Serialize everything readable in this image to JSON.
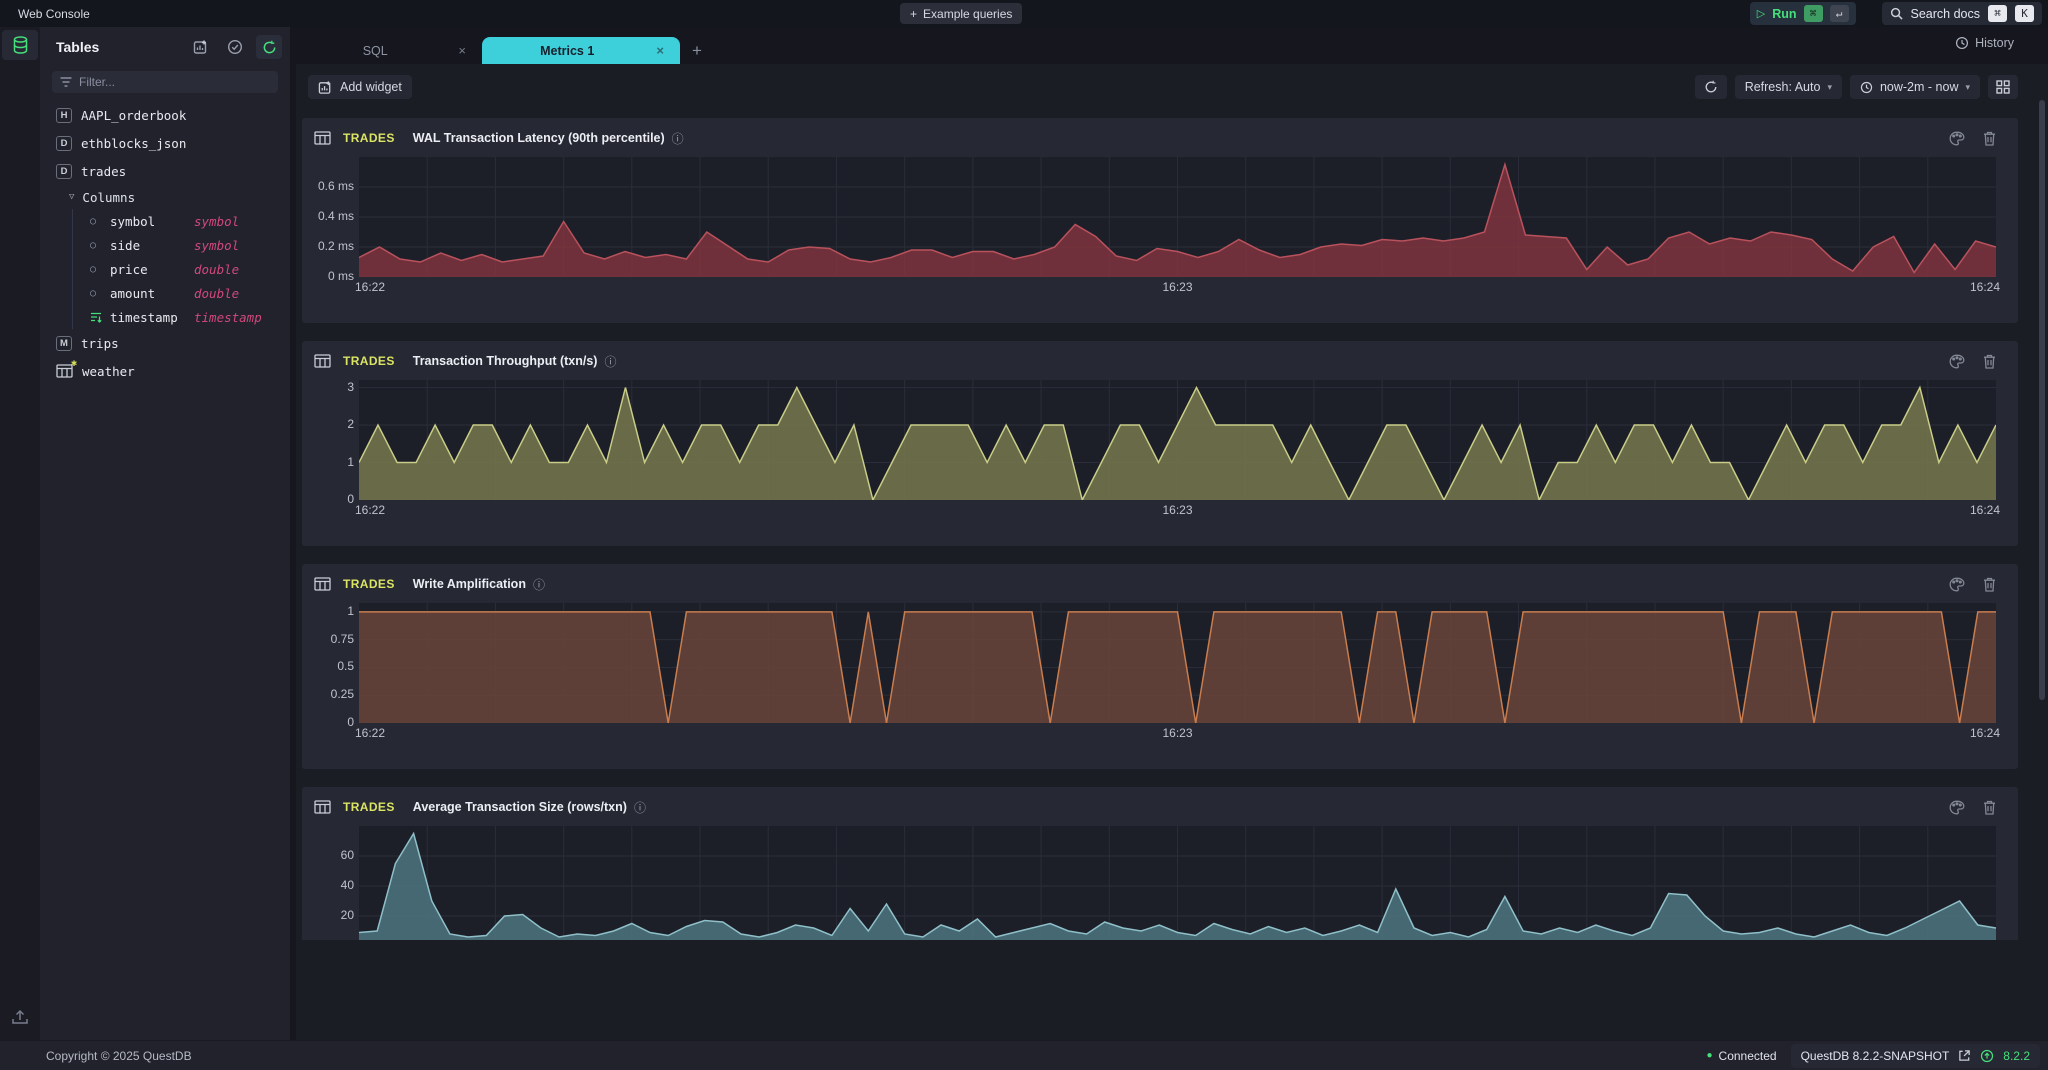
{
  "topbar": {
    "app_title": "Web Console",
    "example_queries_label": "Example queries",
    "run_label": "Run",
    "run_kbd": [
      "⌘",
      "↵"
    ],
    "search_label": "Search docs",
    "search_kbd": [
      "⌘",
      "K"
    ]
  },
  "icons": {
    "plus": "+",
    "run": "▷",
    "info": "ⓘ",
    "chevron_down": "▾",
    "close": "×",
    "circle": "○",
    "triangle_down": "▽",
    "asterisk": "✱",
    "dot": "●"
  },
  "sidebar": {
    "title": "Tables",
    "filter_placeholder": "Filter...",
    "columns_label": "Columns",
    "tables": [
      {
        "badge": "H",
        "name": "AAPL_orderbook"
      },
      {
        "badge": "D",
        "name": "ethblocks_json"
      },
      {
        "badge": "D",
        "name": "trades",
        "expanded": true,
        "columns": [
          {
            "name": "symbol",
            "type": "symbol"
          },
          {
            "name": "side",
            "type": "symbol"
          },
          {
            "name": "price",
            "type": "double"
          },
          {
            "name": "amount",
            "type": "double"
          },
          {
            "name": "timestamp",
            "type": "timestamp",
            "designated": true
          }
        ]
      },
      {
        "badge": "M",
        "name": "trips"
      },
      {
        "badge": "matview",
        "name": "weather"
      }
    ]
  },
  "tabs": {
    "items": [
      {
        "label": "SQL",
        "active": false
      },
      {
        "label": "Metrics 1",
        "active": true
      }
    ],
    "history_label": "History"
  },
  "toolbar": {
    "add_widget_label": "Add widget",
    "refresh_mode": "Refresh: Auto",
    "time_range": "now-2m - now"
  },
  "statusbar": {
    "copyright": "Copyright © 2025 QuestDB",
    "connection": "Connected",
    "version": "QuestDB 8.2.2-SNAPSHOT",
    "update_version": "8.2.2"
  },
  "colors": {
    "accent_cyan": "#3ed0da",
    "accent_green": "#45e07b",
    "table_yellow": "#dbe463",
    "type_pink": "#d0487c"
  },
  "chart_data": [
    {
      "type": "area",
      "table": "TRADES",
      "title": "WAL Transaction Latency (90th percentile)",
      "line_color": "#b9525c",
      "fill_color": "rgba(134,52,64,0.8)",
      "ylim": [
        0,
        0.8
      ],
      "yticks": [
        {
          "v": 0,
          "label": "0 ms"
        },
        {
          "v": 0.2,
          "label": "0.2 ms"
        },
        {
          "v": 0.4,
          "label": "0.4 ms"
        },
        {
          "v": 0.6,
          "label": "0.6 ms"
        }
      ],
      "x_ticks": [
        "16:22",
        "16:23",
        "16:24"
      ],
      "grid": true,
      "values": [
        0.13,
        0.2,
        0.12,
        0.1,
        0.16,
        0.11,
        0.15,
        0.1,
        0.12,
        0.14,
        0.37,
        0.16,
        0.12,
        0.17,
        0.13,
        0.15,
        0.12,
        0.3,
        0.21,
        0.12,
        0.1,
        0.18,
        0.2,
        0.19,
        0.12,
        0.1,
        0.13,
        0.18,
        0.18,
        0.13,
        0.17,
        0.17,
        0.12,
        0.15,
        0.2,
        0.35,
        0.27,
        0.14,
        0.11,
        0.19,
        0.17,
        0.13,
        0.17,
        0.25,
        0.18,
        0.13,
        0.15,
        0.2,
        0.22,
        0.21,
        0.25,
        0.24,
        0.26,
        0.24,
        0.26,
        0.3,
        0.75,
        0.28,
        0.27,
        0.26,
        0.05,
        0.2,
        0.08,
        0.12,
        0.26,
        0.3,
        0.22,
        0.26,
        0.24,
        0.3,
        0.28,
        0.25,
        0.12,
        0.04,
        0.2,
        0.27,
        0.03,
        0.22,
        0.05,
        0.24,
        0.2
      ]
    },
    {
      "type": "area",
      "table": "TRADES",
      "title": "Transaction Throughput (txn/s)",
      "line_color": "#c9cd87",
      "fill_color": "rgba(118,120,78,0.85)",
      "ylim": [
        0,
        3.2
      ],
      "yticks": [
        {
          "v": 0,
          "label": "0"
        },
        {
          "v": 1,
          "label": "1"
        },
        {
          "v": 2,
          "label": "2"
        },
        {
          "v": 3,
          "label": "3"
        }
      ],
      "x_ticks": [
        "16:22",
        "16:23",
        "16:24"
      ],
      "grid": true,
      "values": [
        1,
        2,
        1,
        1,
        2,
        1,
        2,
        2,
        1,
        2,
        1,
        1,
        2,
        1,
        3,
        1,
        2,
        1,
        2,
        2,
        1,
        2,
        2,
        3,
        2,
        1,
        2,
        0,
        1,
        2,
        2,
        2,
        2,
        1,
        2,
        1,
        2,
        2,
        0,
        1,
        2,
        2,
        1,
        2,
        3,
        2,
        2,
        2,
        2,
        1,
        2,
        1,
        0,
        1,
        2,
        2,
        1,
        0,
        1,
        2,
        1,
        2,
        0,
        1,
        1,
        2,
        1,
        2,
        2,
        1,
        2,
        1,
        1,
        0,
        1,
        2,
        1,
        2,
        2,
        1,
        2,
        2,
        3,
        1,
        2,
        1,
        2
      ]
    },
    {
      "type": "area",
      "table": "TRADES",
      "title": "Write Amplification",
      "line_color": "#c97d4e",
      "fill_color": "rgba(102,67,56,0.9)",
      "ylim": [
        0,
        1.08
      ],
      "yticks": [
        {
          "v": 0,
          "label": "0"
        },
        {
          "v": 0.25,
          "label": "0.25"
        },
        {
          "v": 0.5,
          "label": "0.5"
        },
        {
          "v": 0.75,
          "label": "0.75"
        },
        {
          "v": 1,
          "label": "1"
        }
      ],
      "x_ticks": [
        "16:22",
        "16:23",
        "16:24"
      ],
      "grid": true,
      "values": [
        1,
        1,
        1,
        1,
        1,
        1,
        1,
        1,
        1,
        1,
        1,
        1,
        1,
        1,
        1,
        1,
        1,
        0,
        1,
        1,
        1,
        1,
        1,
        1,
        1,
        1,
        1,
        0,
        1,
        0,
        1,
        1,
        1,
        1,
        1,
        1,
        1,
        1,
        0,
        1,
        1,
        1,
        1,
        1,
        1,
        1,
        0,
        1,
        1,
        1,
        1,
        1,
        1,
        1,
        1,
        0,
        1,
        1,
        0,
        1,
        1,
        1,
        1,
        0,
        1,
        1,
        1,
        1,
        1,
        1,
        1,
        1,
        1,
        1,
        1,
        1,
        0,
        1,
        1,
        1,
        0,
        1,
        1,
        1,
        1,
        1,
        1,
        1,
        0,
        1,
        1
      ]
    },
    {
      "type": "area",
      "table": "TRADES",
      "title": "Average Transaction Size (rows/txn)",
      "line_color": "#8fc0c9",
      "fill_color": "rgba(77,118,128,0.85)",
      "ylim": [
        0,
        80
      ],
      "yticks": [
        {
          "v": 20,
          "label": "20"
        },
        {
          "v": 40,
          "label": "40"
        },
        {
          "v": 60,
          "label": "60"
        }
      ],
      "x_ticks": [
        "16:22",
        "16:23",
        "16:24"
      ],
      "grid": true,
      "values": [
        9,
        10,
        55,
        75,
        30,
        8,
        6,
        7,
        20,
        21,
        12,
        6,
        8,
        7,
        10,
        15,
        9,
        7,
        13,
        17,
        16,
        8,
        6,
        9,
        14,
        12,
        7,
        25,
        10,
        28,
        8,
        6,
        14,
        10,
        18,
        6,
        9,
        12,
        15,
        10,
        8,
        16,
        12,
        10,
        14,
        9,
        7,
        15,
        11,
        8,
        13,
        9,
        12,
        7,
        10,
        14,
        9,
        38,
        12,
        7,
        9,
        6,
        11,
        33,
        10,
        8,
        12,
        9,
        14,
        10,
        7,
        12,
        35,
        34,
        20,
        10,
        8,
        9,
        12,
        8,
        6,
        10,
        14,
        9,
        7,
        12,
        18,
        24,
        30,
        14,
        12
      ]
    }
  ]
}
